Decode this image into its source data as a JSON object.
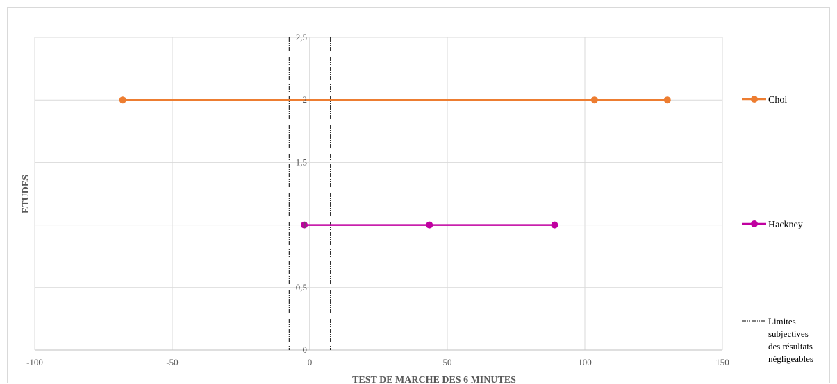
{
  "chart_data": {
    "type": "scatter",
    "title": "",
    "xlabel": "TEST DE MARCHE DES 6 MINUTES",
    "ylabel": "ETUDES",
    "xlim": [
      -100,
      150
    ],
    "ylim": [
      0,
      2.5
    ],
    "x_ticks": [
      "-100",
      "-50",
      "0",
      "50",
      "100",
      "150"
    ],
    "y_ticks": [
      "0",
      "0,5",
      "1",
      "1,5",
      "2",
      "2,5"
    ],
    "grid": true,
    "legend_position": "right",
    "series": [
      {
        "name": "Choi",
        "color": "#ED7D31",
        "points": [
          [
            -68,
            2
          ],
          [
            103.5,
            2
          ],
          [
            130,
            2
          ]
        ]
      },
      {
        "name": "Hackney",
        "color": "#C000A0",
        "points": [
          [
            -2,
            1
          ],
          [
            43.5,
            1
          ],
          [
            89,
            1
          ]
        ]
      }
    ],
    "reference_lines": {
      "name_lines": [
        "Limites",
        "subjectives",
        "des résultats",
        "négligeables"
      ],
      "x_values": [
        -7.5,
        7.5
      ],
      "color": "#000000"
    }
  }
}
